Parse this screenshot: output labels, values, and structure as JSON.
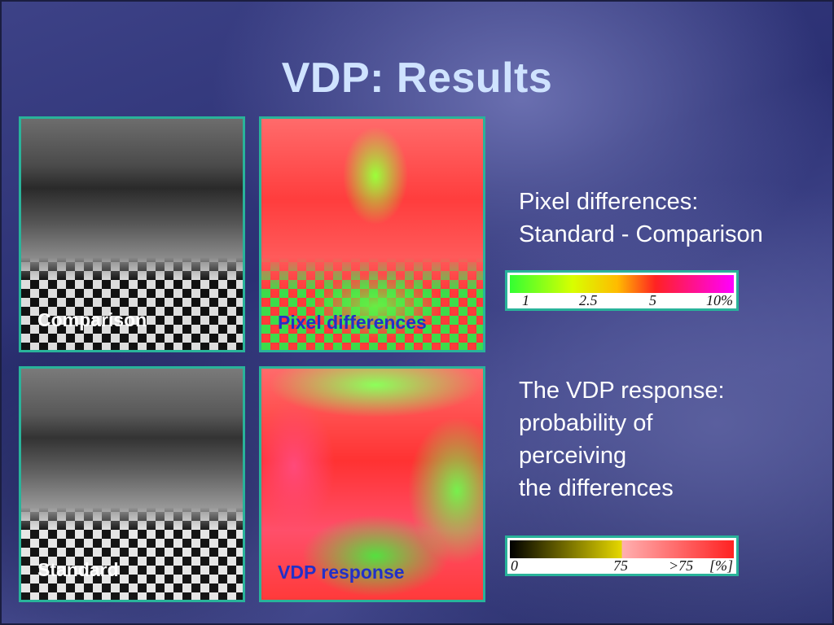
{
  "slide": {
    "title": "VDP: Results"
  },
  "panels": {
    "comparison_label": "Comparison",
    "pixel_diff_label": "Pixel differences",
    "standard_label": "Standard",
    "vdp_label": "VDP response"
  },
  "captions": {
    "pixel_diff": [
      "Pixel differences:",
      "Standard - Comparison"
    ],
    "vdp": [
      "The VDP response:",
      "probability of",
      "perceiving",
      "the differences"
    ]
  },
  "scales": {
    "pixel_diff": {
      "colors": [
        "#33ff33",
        "#d8ff00",
        "#ffbb00",
        "#ff2222",
        "#ff00ff"
      ],
      "ticks": [
        "1",
        "2.5",
        "5",
        "10%"
      ]
    },
    "vdp": {
      "colors": [
        "#000000",
        "#e6d800",
        "#ffb0b0",
        "#ff2222"
      ],
      "ticks": [
        "0",
        "75",
        ">75",
        "[%]"
      ]
    }
  }
}
